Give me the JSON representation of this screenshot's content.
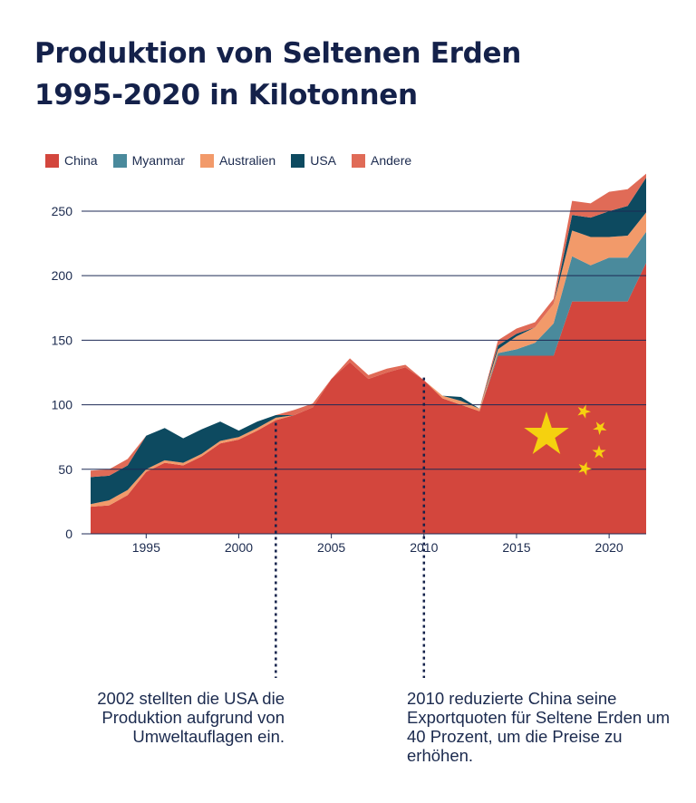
{
  "title_line1": "Produktion von Seltenen Erden",
  "title_line2": "1995-2020 in Kilotonnen",
  "annotations": {
    "a2002": "2002 stellten die USA die Produktion aufgrund von Umweltauflagen ein.",
    "a2010": "2010 reduzierte China seine Exportquoten für Seltene Erden um 40 Prozent, um die Preise zu erhöhen."
  },
  "colors": {
    "china": "#d3463d",
    "myanmar": "#4a8a9c",
    "australien": "#f29a6a",
    "usa": "#0d4a60",
    "andere": "#e06b57",
    "grid": "#1d2a55",
    "star": "#f5d10f",
    "text": "#1b2a4e"
  },
  "chart_data": {
    "type": "area",
    "stacked": true,
    "title": "Produktion von Seltenen Erden 1995-2020 in Kilotonnen",
    "xlabel": "",
    "ylabel": "",
    "xlim": [
      1992,
      2022
    ],
    "ylim": [
      0,
      290
    ],
    "x": [
      1992,
      1993,
      1994,
      1995,
      1996,
      1997,
      1998,
      1999,
      2000,
      2001,
      2002,
      2003,
      2004,
      2005,
      2006,
      2007,
      2008,
      2009,
      2010,
      2011,
      2012,
      2013,
      2014,
      2015,
      2016,
      2017,
      2018,
      2019,
      2020,
      2021,
      2022
    ],
    "series": [
      {
        "name": "China",
        "key": "china",
        "values": [
          21,
          22,
          30,
          48,
          55,
          53,
          60,
          70,
          73,
          80,
          88,
          92,
          98,
          120,
          133,
          120,
          125,
          129,
          119,
          105,
          100,
          95,
          138,
          138,
          138,
          138,
          180,
          180,
          180,
          180,
          210
        ]
      },
      {
        "name": "Myanmar",
        "key": "myanmar",
        "values": [
          0,
          0,
          0,
          0,
          0,
          0,
          0,
          0,
          0,
          0,
          0,
          0,
          0,
          0,
          0,
          0,
          0,
          0,
          0,
          0,
          0,
          0,
          2,
          5,
          10,
          25,
          35,
          28,
          34,
          34,
          24
        ]
      },
      {
        "name": "Australien",
        "key": "australien",
        "values": [
          2,
          4,
          4,
          2,
          2,
          2,
          2,
          2,
          2,
          2,
          2,
          0,
          0,
          0,
          0,
          0,
          0,
          0,
          0,
          2,
          3,
          2,
          3,
          10,
          12,
          15,
          20,
          22,
          16,
          17,
          15
        ]
      },
      {
        "name": "USA",
        "key": "usa",
        "values": [
          21,
          19,
          19,
          26,
          25,
          19,
          19,
          15,
          5,
          5,
          2,
          0,
          0,
          0,
          0,
          0,
          0,
          0,
          0,
          0,
          3,
          0,
          3,
          2,
          0,
          0,
          12,
          15,
          20,
          23,
          27
        ]
      },
      {
        "name": "Andere",
        "key": "andere",
        "values": [
          5,
          5,
          5,
          0,
          0,
          0,
          0,
          0,
          0,
          0,
          0,
          4,
          3,
          0,
          3,
          3,
          3,
          2,
          0,
          0,
          0,
          0,
          4,
          4,
          4,
          4,
          11,
          11,
          15,
          13,
          3
        ]
      }
    ],
    "yticks": [
      0,
      50,
      100,
      150,
      200,
      250
    ],
    "xticks": [
      1995,
      2000,
      2005,
      2010,
      2015,
      2020
    ],
    "legend_position": "top-left",
    "markers": [
      2002,
      2010
    ]
  }
}
